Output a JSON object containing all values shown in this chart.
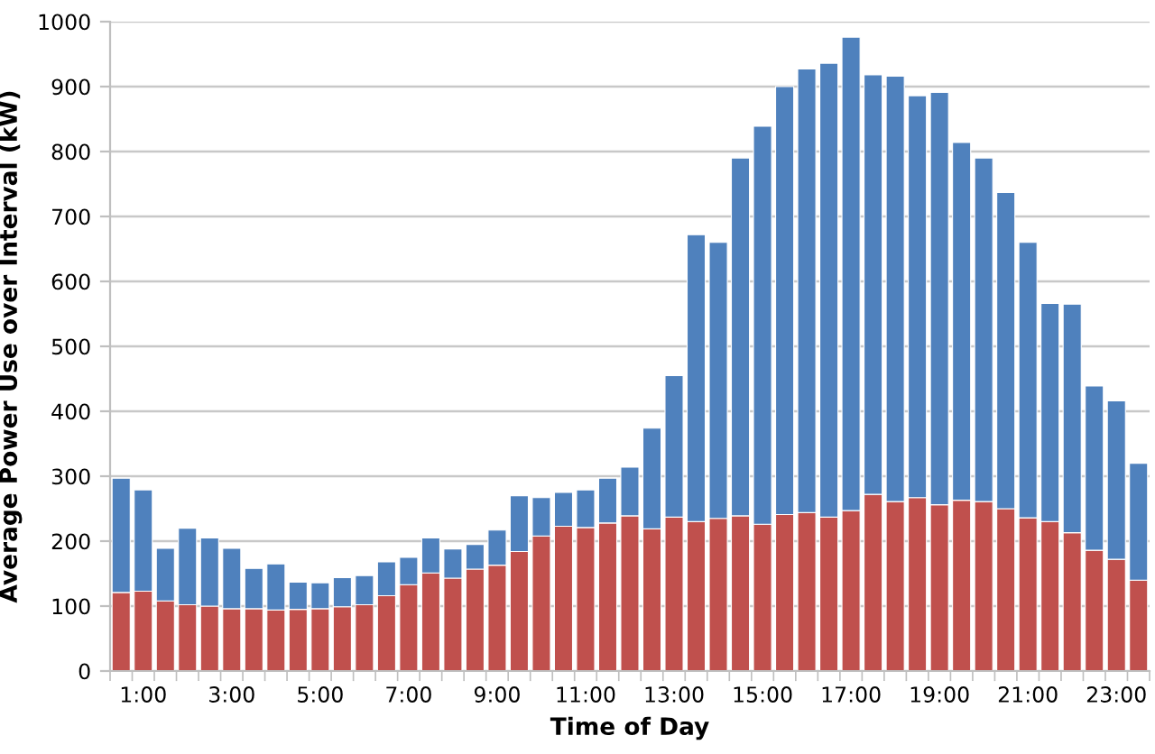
{
  "chart_data": {
    "type": "bar",
    "stacked": true,
    "xlabel": "Time of Day",
    "ylabel": "Average Power Use over Interval (kW)",
    "categories": [
      null,
      "1:00",
      null,
      null,
      null,
      "3:00",
      null,
      null,
      null,
      "5:00",
      null,
      null,
      null,
      "7:00",
      null,
      null,
      null,
      "9:00",
      null,
      null,
      null,
      "11:00",
      null,
      null,
      null,
      "13:00",
      null,
      null,
      null,
      "15:00",
      null,
      null,
      null,
      "17:00",
      null,
      null,
      null,
      "19:00",
      null,
      null,
      null,
      "21:00",
      null,
      null,
      null,
      "23:00",
      null
    ],
    "series": [
      {
        "color": "#c0504d",
        "values": [
          121,
          123,
          108,
          102,
          100,
          96,
          96,
          94,
          95,
          96,
          99,
          102,
          116,
          133,
          151,
          143,
          157,
          163,
          184,
          208,
          223,
          221,
          228,
          239,
          219,
          237,
          230,
          235,
          239,
          226,
          241,
          244,
          237,
          247,
          272,
          261,
          267,
          256,
          263,
          261,
          250,
          236,
          230,
          213,
          186,
          172,
          140
        ]
      },
      {
        "color": "#4f81bd",
        "values": [
          176,
          156,
          81,
          118,
          105,
          93,
          62,
          71,
          42,
          40,
          45,
          45,
          52,
          42,
          54,
          45,
          38,
          54,
          86,
          59,
          52,
          58,
          69,
          75,
          155,
          218,
          442,
          425,
          551,
          613,
          659,
          683,
          699,
          729,
          646,
          655,
          619,
          635,
          551,
          529,
          487,
          424,
          336,
          352,
          253,
          244,
          180
        ]
      }
    ],
    "ylim": [
      0,
      1000
    ],
    "yticks": [
      0,
      100,
      200,
      300,
      400,
      500,
      600,
      700,
      800,
      900,
      1000
    ],
    "grid": "y",
    "legend": false
  }
}
